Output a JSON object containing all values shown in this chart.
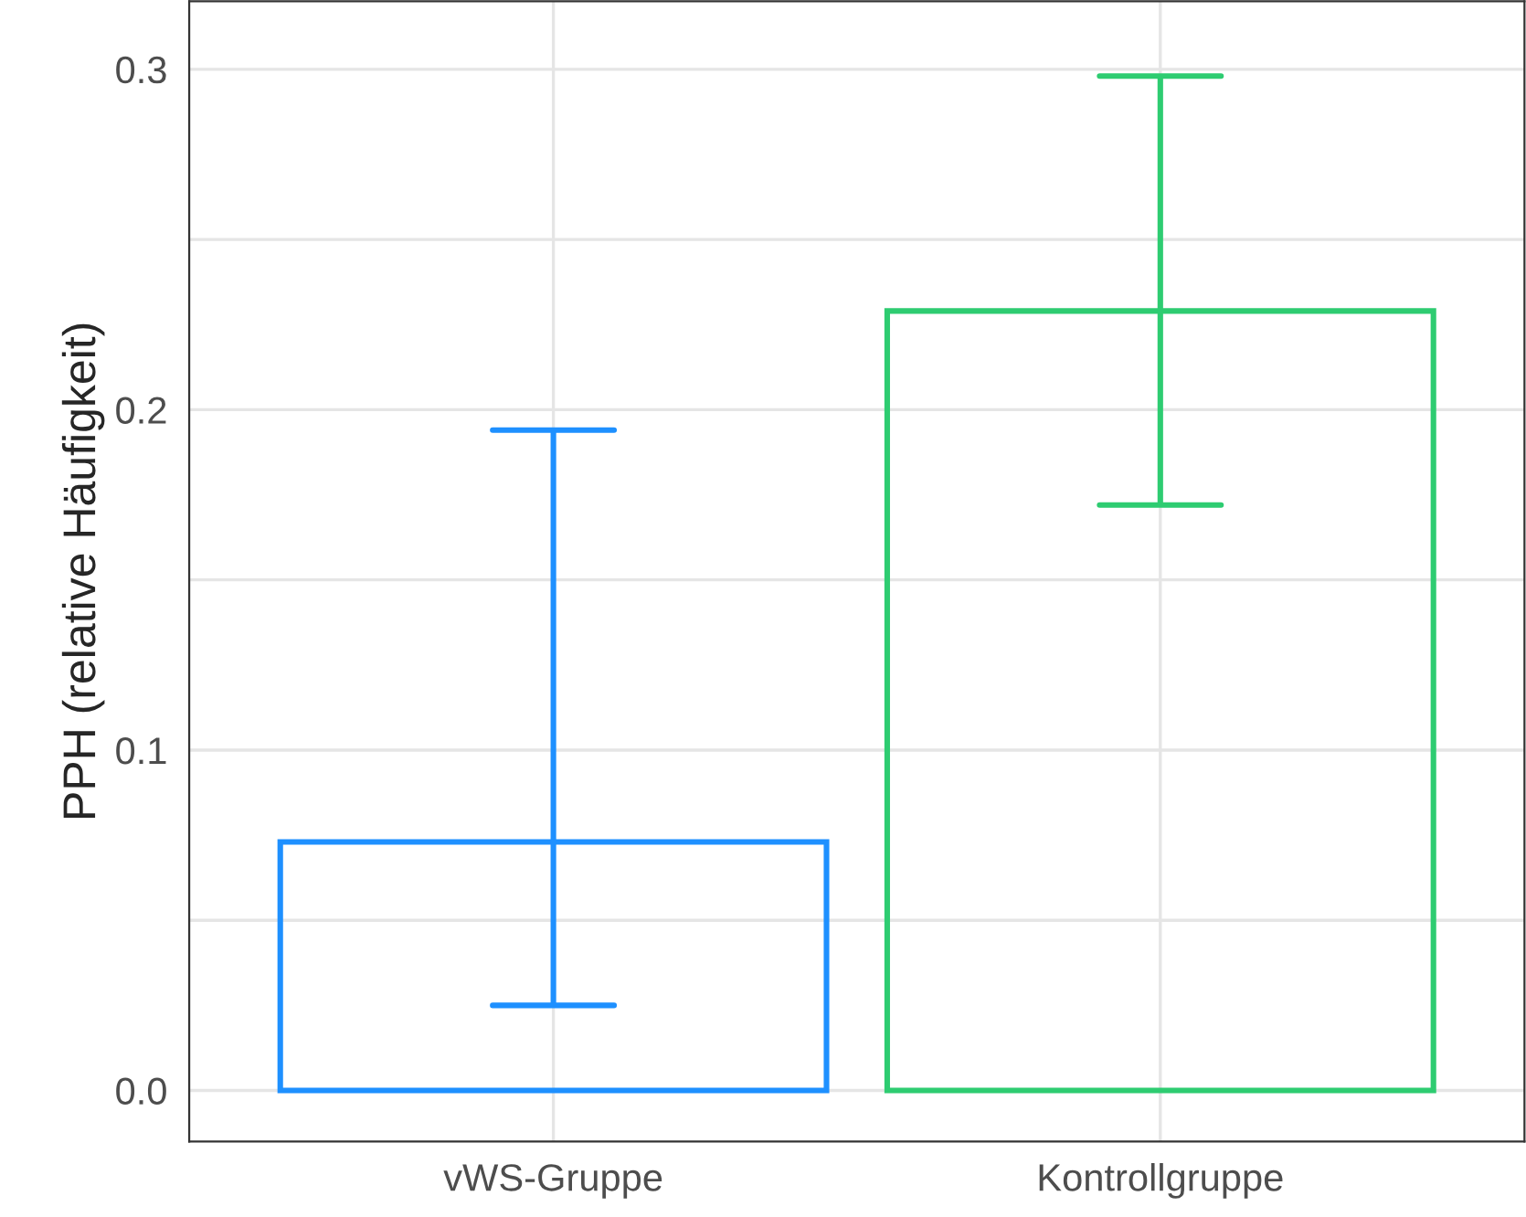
{
  "chart_data": {
    "type": "bar",
    "ylabel": "PPH (relative Häufigkeit)",
    "categories": [
      "vWS-Gruppe",
      "Kontrollgruppe"
    ],
    "values": [
      0.073,
      0.229
    ],
    "errors": [
      [
        0.025,
        0.194
      ],
      [
        0.172,
        0.298
      ]
    ],
    "colors": [
      "#1e90ff",
      "#2ecc71"
    ],
    "ylim": [
      -0.015,
      0.32
    ],
    "yticks": [
      {
        "value": 0,
        "label": "0.0"
      },
      {
        "value": 0.05,
        "label": null
      },
      {
        "value": 0.1,
        "label": "0.1"
      },
      {
        "value": 0.15,
        "label": null
      },
      {
        "value": 0.2,
        "label": "0.2"
      },
      {
        "value": 0.25,
        "label": null
      },
      {
        "value": 0.3,
        "label": "0.3"
      }
    ],
    "grid": true,
    "legend": false
  }
}
